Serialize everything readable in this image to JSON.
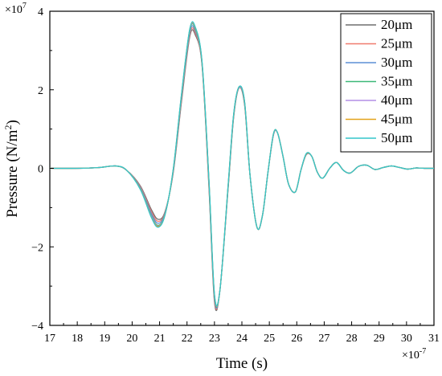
{
  "chart_data": {
    "type": "line",
    "title": "",
    "xlabel": "Time (s)",
    "ylabel_main": "Pressure (N/m",
    "ylabel_sup": "2",
    "ylabel_end": ")",
    "x_multiplier": "×10",
    "x_multiplier_exp": "-7",
    "y_multiplier": "×10",
    "y_multiplier_exp": "7",
    "xlim": [
      17,
      31
    ],
    "ylim": [
      -4,
      4
    ],
    "xticks": [
      "17",
      "18",
      "19",
      "20",
      "21",
      "22",
      "23",
      "24",
      "25",
      "26",
      "27",
      "28",
      "29",
      "30",
      "31"
    ],
    "yticks": [
      "4",
      "2",
      "0",
      "−2",
      "−4"
    ],
    "legend_position": "top-right",
    "x": [
      17.0,
      18.0,
      18.8,
      19.4,
      19.8,
      20.3,
      20.7,
      20.95,
      21.2,
      21.5,
      21.8,
      22.1,
      22.3,
      22.55,
      22.8,
      23.0,
      23.2,
      23.5,
      23.7,
      23.9,
      24.1,
      24.3,
      24.55,
      24.75,
      24.95,
      25.15,
      25.3,
      25.5,
      25.7,
      25.95,
      26.15,
      26.35,
      26.55,
      26.75,
      26.95,
      27.2,
      27.45,
      27.7,
      27.95,
      28.25,
      28.55,
      28.85,
      29.15,
      29.45,
      29.75,
      30.05,
      30.35,
      30.65,
      31.0
    ],
    "series": [
      {
        "name": "20μm",
        "color": "#6e6e6e",
        "y": [
          0,
          0,
          0.02,
          0.06,
          -0.05,
          -0.45,
          -1.05,
          -1.3,
          -1.1,
          -0.1,
          1.7,
          3.35,
          3.4,
          2.6,
          -0.5,
          -3.4,
          -3.1,
          -0.5,
          1.3,
          2.05,
          1.6,
          -0.2,
          -1.5,
          -1.2,
          -0.1,
          0.85,
          0.9,
          0.3,
          -0.4,
          -0.6,
          -0.05,
          0.35,
          0.3,
          -0.1,
          -0.25,
          0.0,
          0.15,
          -0.05,
          -0.12,
          0.05,
          0.08,
          -0.03,
          0.02,
          0.06,
          0.02,
          -0.02,
          0.01,
          0.0,
          0.0
        ]
      },
      {
        "name": "25μm",
        "color": "#f07a6e",
        "y": [
          0,
          0,
          0.02,
          0.06,
          -0.05,
          -0.47,
          -1.1,
          -1.35,
          -1.12,
          -0.08,
          1.75,
          3.4,
          3.45,
          2.62,
          -0.45,
          -3.35,
          -3.1,
          -0.48,
          1.32,
          2.05,
          1.62,
          -0.2,
          -1.5,
          -1.2,
          -0.1,
          0.85,
          0.9,
          0.3,
          -0.4,
          -0.6,
          -0.05,
          0.35,
          0.3,
          -0.1,
          -0.25,
          0.0,
          0.15,
          -0.05,
          -0.12,
          0.05,
          0.08,
          -0.03,
          0.02,
          0.06,
          0.02,
          -0.02,
          0.01,
          0.0,
          0.0
        ]
      },
      {
        "name": "30μm",
        "color": "#5b8fd6",
        "y": [
          0,
          0,
          0.02,
          0.06,
          -0.05,
          -0.49,
          -1.15,
          -1.4,
          -1.14,
          -0.06,
          1.8,
          3.45,
          3.5,
          2.64,
          -0.4,
          -3.3,
          -3.1,
          -0.46,
          1.34,
          2.06,
          1.64,
          -0.2,
          -1.5,
          -1.2,
          -0.1,
          0.86,
          0.9,
          0.3,
          -0.4,
          -0.6,
          -0.05,
          0.36,
          0.3,
          -0.1,
          -0.25,
          0.0,
          0.15,
          -0.05,
          -0.12,
          0.05,
          0.08,
          -0.03,
          0.02,
          0.06,
          0.02,
          -0.02,
          0.01,
          0.0,
          0.0
        ]
      },
      {
        "name": "35μm",
        "color": "#3cb878",
        "y": [
          0,
          0,
          0.02,
          0.06,
          -0.05,
          -0.51,
          -1.2,
          -1.45,
          -1.16,
          -0.04,
          1.85,
          3.5,
          3.55,
          2.66,
          -0.35,
          -3.25,
          -3.1,
          -0.44,
          1.36,
          2.07,
          1.66,
          -0.2,
          -1.5,
          -1.2,
          -0.1,
          0.87,
          0.9,
          0.3,
          -0.4,
          -0.6,
          -0.05,
          0.37,
          0.3,
          -0.1,
          -0.25,
          0.0,
          0.15,
          -0.05,
          -0.12,
          0.05,
          0.08,
          -0.03,
          0.02,
          0.06,
          0.02,
          -0.02,
          0.01,
          0.0,
          0.0
        ]
      },
      {
        "name": "40μm",
        "color": "#b48ee6",
        "y": [
          0,
          0,
          0.02,
          0.06,
          -0.05,
          -0.52,
          -1.22,
          -1.47,
          -1.17,
          -0.03,
          1.87,
          3.52,
          3.57,
          2.67,
          -0.33,
          -3.23,
          -3.1,
          -0.43,
          1.37,
          2.07,
          1.67,
          -0.2,
          -1.5,
          -1.2,
          -0.1,
          0.87,
          0.9,
          0.3,
          -0.4,
          -0.6,
          -0.05,
          0.37,
          0.3,
          -0.1,
          -0.25,
          0.0,
          0.15,
          -0.05,
          -0.12,
          0.05,
          0.08,
          -0.03,
          0.02,
          0.06,
          0.02,
          -0.02,
          0.01,
          0.0,
          0.0
        ]
      },
      {
        "name": "45μm",
        "color": "#e3a21a",
        "y": [
          0,
          0,
          0.02,
          0.06,
          -0.05,
          -0.53,
          -1.24,
          -1.48,
          -1.18,
          -0.02,
          1.88,
          3.54,
          3.58,
          2.68,
          -0.32,
          -3.22,
          -3.1,
          -0.42,
          1.37,
          2.08,
          1.68,
          -0.2,
          -1.5,
          -1.2,
          -0.1,
          0.88,
          0.9,
          0.3,
          -0.4,
          -0.6,
          -0.05,
          0.37,
          0.3,
          -0.1,
          -0.25,
          0.0,
          0.15,
          -0.05,
          -0.12,
          0.05,
          0.08,
          -0.03,
          0.02,
          0.06,
          0.02,
          -0.02,
          0.01,
          0.0,
          0.0
        ]
      },
      {
        "name": "50μm",
        "color": "#33c6cc",
        "y": [
          0,
          0,
          0.02,
          0.06,
          -0.05,
          -0.54,
          -1.25,
          -1.5,
          -1.18,
          -0.01,
          1.9,
          3.55,
          3.6,
          2.7,
          -0.3,
          -3.2,
          -3.1,
          -0.41,
          1.38,
          2.08,
          1.69,
          -0.2,
          -1.5,
          -1.2,
          -0.1,
          0.88,
          0.9,
          0.3,
          -0.4,
          -0.6,
          -0.05,
          0.38,
          0.3,
          -0.1,
          -0.25,
          0.0,
          0.15,
          -0.05,
          -0.12,
          0.05,
          0.08,
          -0.03,
          0.02,
          0.06,
          0.02,
          -0.02,
          0.01,
          0.0,
          0.0
        ]
      }
    ]
  }
}
